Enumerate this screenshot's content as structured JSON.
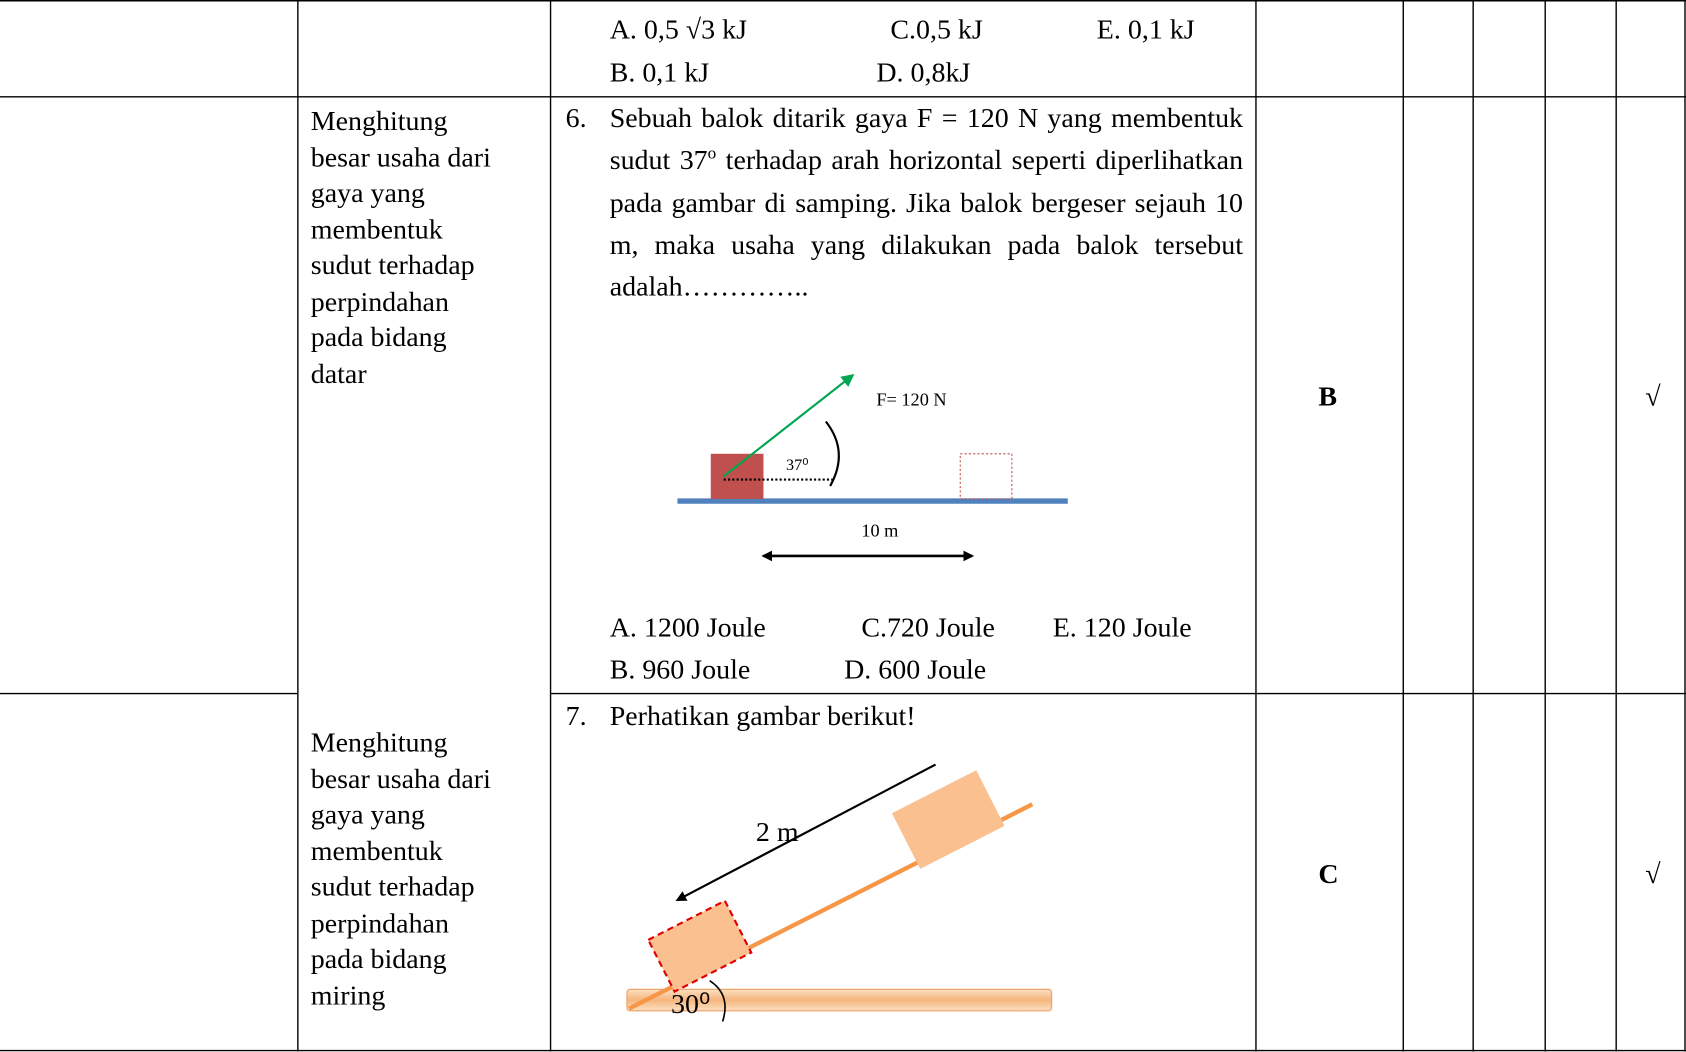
{
  "table": {
    "rows": [
      {
        "options": [
          "A.  0,5 √3 kJ",
          "C.0,5 kJ",
          "E. 0,1 kJ",
          "B.  0,1 kJ",
          "D. 0,8kJ"
        ]
      },
      {
        "indicator_lines": [
          "Menghitung",
          "besar usaha dari",
          "gaya yang",
          "membentuk",
          "sudut terhadap",
          "perpindahan",
          "pada bidang",
          "datar"
        ],
        "number": "6.",
        "question_before": "Sebuah balok ditarik gaya F = 120 N yang membentuk sudut 37",
        "question_sup": "o",
        "question_after": " terhadap arah horizontal seperti diperlihatkan pada gambar di samping. Jika balok bergeser sejauh 10 m, maka usaha yang dilakukan pada balok tersebut adalah…………..",
        "figure": {
          "force": "F= 120 N",
          "angle": "37⁰",
          "distance": "10 m"
        },
        "options": [
          "A.  1200 Joule",
          "C.720 Joule",
          "E. 120 Joule",
          "B.  960 Joule",
          "D. 600 Joule"
        ],
        "answer": "B",
        "check": "√"
      },
      {
        "indicator_lines": [
          "Menghitung",
          "besar usaha dari",
          "gaya yang",
          "membentuk",
          "sudut terhadap",
          "perpindahan",
          "pada bidang",
          "miring"
        ],
        "number": "7.",
        "question": "Perhatikan gambar berikut!",
        "figure": {
          "distance": "2 m",
          "angle": "30⁰"
        },
        "answer": "C",
        "check": "√"
      }
    ]
  }
}
